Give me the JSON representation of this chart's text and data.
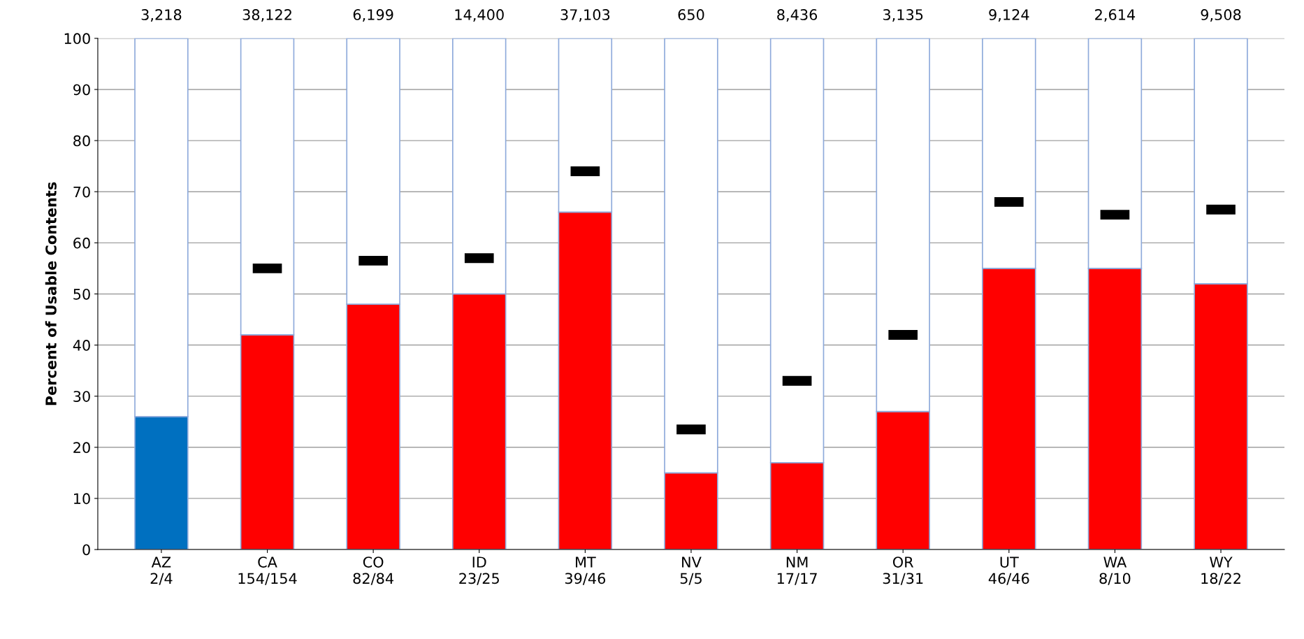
{
  "chart_data": {
    "type": "bar",
    "stacked": true,
    "ylabel": "Percent of Usable Contents",
    "categories": [
      "AZ\n2/4",
      "CA\n154/154",
      "CO\n82/84",
      "ID\n23/25",
      "MT\n39/46",
      "NV\n5/5",
      "NM\n17/17",
      "OR\n31/31",
      "UT\n46/46",
      "WA\n8/10",
      "WY\n18/22"
    ],
    "series": [
      {
        "colors": [
          "#0070c0",
          "#ff0000",
          "#ff0000",
          "#ff0000",
          "#ff0000",
          "#ff0000",
          "#ff0000",
          "#ff0000",
          "#ff0000",
          "#ff0000",
          "#ff0000"
        ],
        "values": [
          26,
          42,
          48,
          50,
          66,
          15,
          17,
          27,
          55,
          55,
          52
        ]
      },
      {
        "color": "#ffffff",
        "values": [
          74,
          58,
          52,
          50,
          34,
          85,
          83,
          73,
          45,
          45,
          48
        ]
      },
      {
        "type": "scatter",
        "marker": "square",
        "color": "#000000",
        "values": [
          null,
          55,
          56.5,
          57,
          74,
          23.5,
          33,
          42,
          68,
          65.5,
          66.5
        ]
      }
    ],
    "annotations": [
      "3,218",
      "38,122",
      "6,199",
      "14,400",
      "37,103",
      "650",
      "8,436",
      "3,135",
      "9,124",
      "2,614",
      "9,508"
    ],
    "ylim": [
      0,
      100
    ],
    "yticks": [
      0,
      10,
      20,
      30,
      40,
      50,
      60,
      70,
      80,
      90,
      100
    ],
    "grid": "y",
    "legend": false
  }
}
